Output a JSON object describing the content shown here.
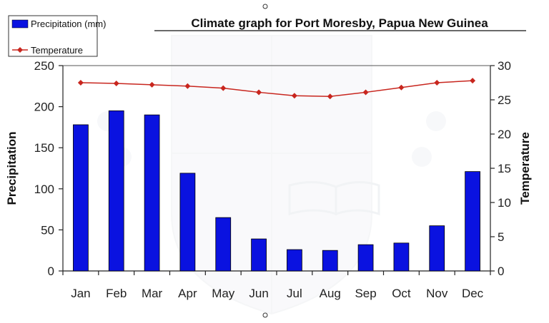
{
  "chart_data": {
    "type": "bar",
    "title": "Climate graph for Port Moresby, Papua New Guinea",
    "categories": [
      "Jan",
      "Feb",
      "Mar",
      "Apr",
      "May",
      "Jun",
      "Jul",
      "Aug",
      "Sep",
      "Oct",
      "Nov",
      "Dec"
    ],
    "series": [
      {
        "name": "Precipitation (mm)",
        "type": "bar",
        "axis": "left",
        "color": "#0a12e0",
        "values": [
          178,
          195,
          190,
          119,
          65,
          39,
          26,
          25,
          32,
          34,
          55,
          121
        ]
      },
      {
        "name": "Temperature",
        "type": "line",
        "axis": "right",
        "color": "#c8261e",
        "values": [
          27.5,
          27.4,
          27.2,
          27.0,
          26.7,
          26.1,
          25.6,
          25.5,
          26.1,
          26.8,
          27.5,
          27.8
        ]
      }
    ],
    "ylabel": "Precipitation",
    "y2label": "Temperature",
    "ylim": [
      0,
      250
    ],
    "y2lim": [
      0,
      30
    ],
    "yticks": [
      "0",
      "50",
      "100",
      "150",
      "200",
      "250"
    ],
    "y2ticks": [
      "0",
      "5",
      "10",
      "15",
      "20",
      "25",
      "30"
    ],
    "legend": {
      "placement": "top-left",
      "entries": [
        "Precipitation (mm)",
        "Temperature"
      ]
    },
    "grid": false
  }
}
